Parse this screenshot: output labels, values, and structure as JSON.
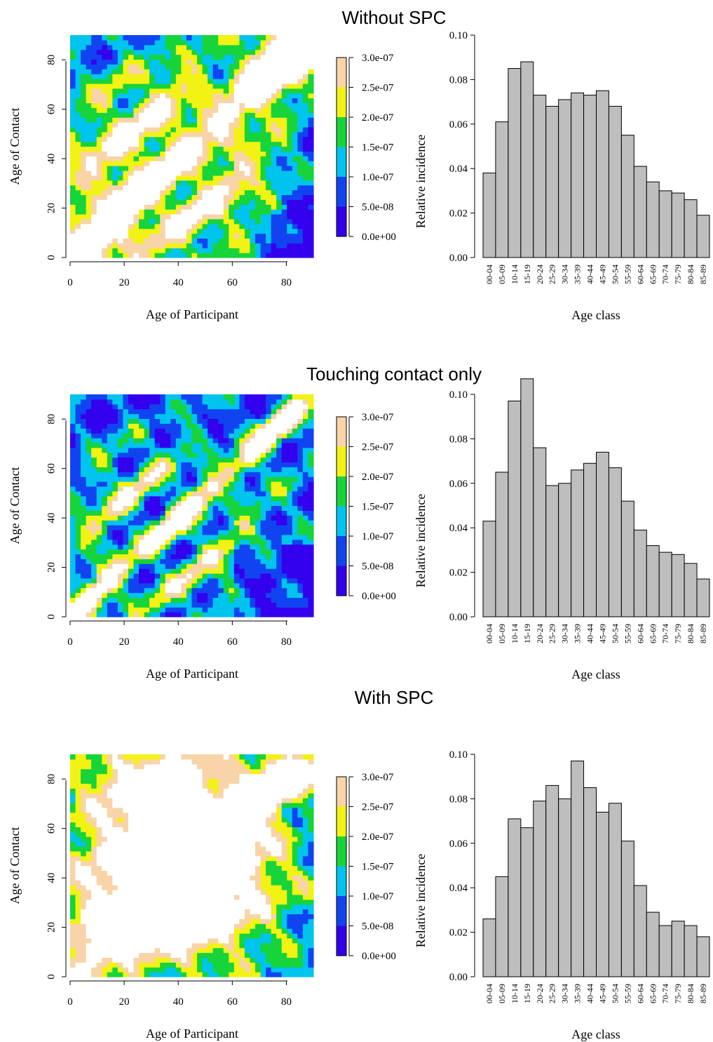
{
  "chart_data": [
    {
      "panel": 1,
      "title": "Without SPC",
      "heatmap": {
        "type": "heatmap",
        "xlabel": "Age of Participant",
        "ylabel": "Age of Contact",
        "xlim": [
          0,
          90
        ],
        "ylim": [
          0,
          90
        ],
        "xticks": [
          "0",
          "20",
          "40",
          "60",
          "80"
        ],
        "yticks": [
          "0",
          "20",
          "40",
          "60",
          "80"
        ],
        "pattern": "strong main diagonal band with secondary parallel bands",
        "colorbar": {
          "labels": [
            "0.0e+00",
            "5.0e-08",
            "1.0e-07",
            "1.5e-07",
            "2.0e-07",
            "2.5e-07",
            "3.0e-07"
          ],
          "colors": [
            "#3300ee",
            "#1144f0",
            "#00c4ee",
            "#16d43a",
            "#f2f214",
            "#f8d4a8",
            "#ffffff"
          ]
        }
      },
      "histogram": {
        "type": "bar",
        "xlabel": "Age class",
        "ylabel": "Relative incidence",
        "ylim": [
          0,
          0.1
        ],
        "yticks": [
          "0.00",
          "0.02",
          "0.04",
          "0.06",
          "0.08",
          "0.10"
        ],
        "categories": [
          "00-04",
          "05-09",
          "10-14",
          "15-19",
          "20-24",
          "25-29",
          "30-34",
          "35-39",
          "40-44",
          "45-49",
          "50-54",
          "55-59",
          "60-64",
          "65-69",
          "70-74",
          "75-79",
          "80-84",
          "85-89"
        ],
        "values": [
          0.038,
          0.061,
          0.085,
          0.088,
          0.073,
          0.068,
          0.071,
          0.074,
          0.073,
          0.075,
          0.068,
          0.055,
          0.041,
          0.034,
          0.03,
          0.029,
          0.026,
          0.019
        ]
      }
    },
    {
      "panel": 2,
      "title": "Touching contact only",
      "heatmap": {
        "type": "heatmap",
        "xlabel": "Age of Participant",
        "ylabel": "Age of Contact",
        "xlim": [
          0,
          90
        ],
        "ylim": [
          0,
          90
        ],
        "xticks": [
          "0",
          "20",
          "40",
          "60",
          "80"
        ],
        "yticks": [
          "0",
          "20",
          "40",
          "60",
          "80"
        ],
        "pattern": "narrow main diagonal band with thinner secondary bands",
        "colorbar": {
          "labels": [
            "0.0e+00",
            "5.0e-08",
            "1.0e-07",
            "1.5e-07",
            "2.0e-07",
            "2.5e-07",
            "3.0e-07"
          ],
          "colors": [
            "#3300ee",
            "#1144f0",
            "#00c4ee",
            "#16d43a",
            "#f2f214",
            "#f8d4a8",
            "#ffffff"
          ]
        }
      },
      "histogram": {
        "type": "bar",
        "xlabel": "Age class",
        "ylabel": "Relative incidence",
        "ylim": [
          0,
          0.1
        ],
        "yticks": [
          "0.00",
          "0.02",
          "0.04",
          "0.06",
          "0.08",
          "0.10"
        ],
        "categories": [
          "00-04",
          "05-09",
          "10-14",
          "15-19",
          "20-24",
          "25-29",
          "30-34",
          "35-39",
          "40-44",
          "45-49",
          "50-54",
          "55-59",
          "60-64",
          "65-69",
          "70-74",
          "75-79",
          "80-84",
          "85-89"
        ],
        "values": [
          0.043,
          0.065,
          0.097,
          0.107,
          0.076,
          0.059,
          0.06,
          0.066,
          0.069,
          0.074,
          0.067,
          0.052,
          0.039,
          0.032,
          0.029,
          0.028,
          0.024,
          0.017
        ]
      }
    },
    {
      "panel": 3,
      "title": "With SPC",
      "heatmap": {
        "type": "heatmap",
        "xlabel": "Age of Participant",
        "ylabel": "Age of Contact",
        "xlim": [
          0,
          90
        ],
        "ylim": [
          0,
          90
        ],
        "xticks": [
          "0",
          "20",
          "40",
          "60",
          "80"
        ],
        "yticks": [
          "0",
          "20",
          "40",
          "60",
          "80"
        ],
        "pattern": "large saturated central region across adult ages",
        "colorbar": {
          "labels": [
            "0.0e+00",
            "5.0e-08",
            "1.0e-07",
            "1.5e-07",
            "2.0e-07",
            "2.5e-07",
            "3.0e-07"
          ],
          "colors": [
            "#3300ee",
            "#1144f0",
            "#00c4ee",
            "#16d43a",
            "#f2f214",
            "#f8d4a8",
            "#ffffff"
          ]
        }
      },
      "histogram": {
        "type": "bar",
        "xlabel": "Age class",
        "ylabel": "Relative incidence",
        "ylim": [
          0,
          0.1
        ],
        "yticks": [
          "0.00",
          "0.02",
          "0.04",
          "0.06",
          "0.08",
          "0.10"
        ],
        "categories": [
          "00-04",
          "05-09",
          "10-14",
          "15-19",
          "20-24",
          "25-29",
          "30-34",
          "35-39",
          "40-44",
          "45-49",
          "50-54",
          "55-59",
          "60-64",
          "65-69",
          "70-74",
          "75-79",
          "80-84",
          "85-89"
        ],
        "values": [
          0.026,
          0.045,
          0.071,
          0.067,
          0.079,
          0.086,
          0.08,
          0.097,
          0.085,
          0.074,
          0.078,
          0.061,
          0.041,
          0.029,
          0.023,
          0.025,
          0.023,
          0.018
        ]
      }
    }
  ]
}
